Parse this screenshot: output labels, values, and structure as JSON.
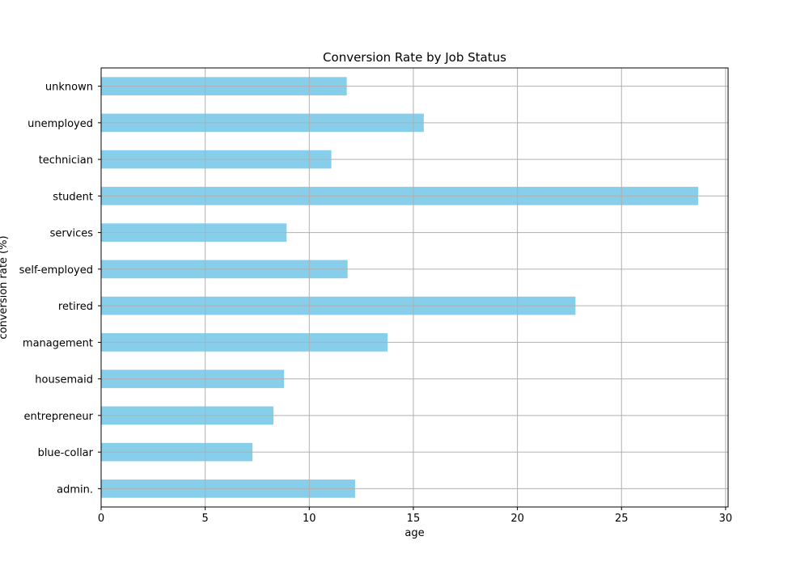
{
  "chart_data": {
    "type": "bar",
    "orientation": "horizontal",
    "title": "Conversion Rate by Job Status",
    "xlabel": "age",
    "ylabel": "conversion rate (%)",
    "xlim": [
      0,
      30.12
    ],
    "xticks": [
      0,
      5,
      10,
      15,
      20,
      25,
      30
    ],
    "grid": true,
    "bar_color": "#87ceeb",
    "grid_color": "#b0b0b0",
    "categories": [
      "admin.",
      "blue-collar",
      "entrepreneur",
      "housemaid",
      "management",
      "retired",
      "self-employed",
      "services",
      "student",
      "technician",
      "unemployed",
      "unknown"
    ],
    "values": [
      12.2,
      7.27,
      8.28,
      8.79,
      13.76,
      22.79,
      11.84,
      8.91,
      28.68,
      11.06,
      15.5,
      11.8
    ]
  }
}
